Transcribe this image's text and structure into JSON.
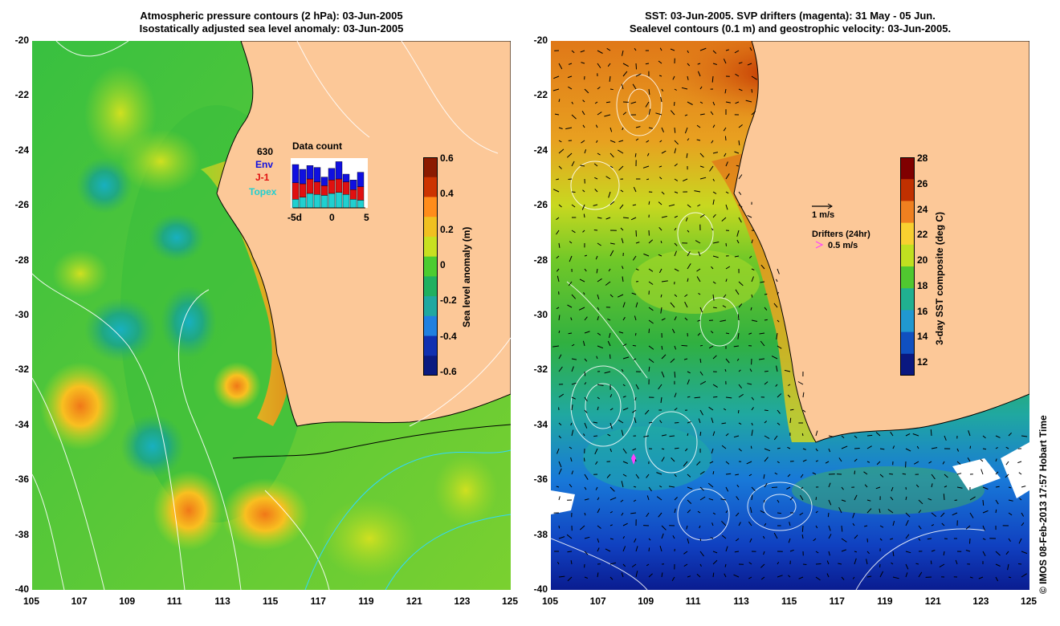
{
  "left_panel": {
    "title_line1": "Atmospheric pressure contours (2 hPa): 03-Jun-2005",
    "title_line2": "Isostatically adjusted sea level anomaly: 03-Jun-2005",
    "colorbar": {
      "title": "Sea level anomaly (m)",
      "ticks": [
        "0.6",
        "0.4",
        "0.2",
        "0",
        "-0.2",
        "-0.4",
        "-0.6"
      ],
      "colors": [
        "#8b1a00",
        "#cc3300",
        "#ff8c1a",
        "#f0c020",
        "#c8e020",
        "#4ccc30",
        "#20b060",
        "#20a8a0",
        "#2080e0",
        "#1030b0",
        "#0a1a80"
      ]
    },
    "data_count": {
      "title": "Data count",
      "total": "630",
      "env_label": "Env",
      "j1_label": "J-1",
      "topex_label": "Topex",
      "x_ticks": [
        "-5d",
        "0",
        "5"
      ],
      "env_color": "#1010e0",
      "j1_color": "#e01010",
      "topex_color": "#20d0d0",
      "bars": [
        {
          "topex": 0.18,
          "j1": 0.34,
          "env": 0.38
        },
        {
          "topex": 0.22,
          "j1": 0.28,
          "env": 0.3
        },
        {
          "topex": 0.3,
          "j1": 0.3,
          "env": 0.28
        },
        {
          "topex": 0.28,
          "j1": 0.26,
          "env": 0.3
        },
        {
          "topex": 0.26,
          "j1": 0.2,
          "env": 0.18
        },
        {
          "topex": 0.3,
          "j1": 0.28,
          "env": 0.24
        },
        {
          "topex": 0.32,
          "j1": 0.28,
          "env": 0.36
        },
        {
          "topex": 0.28,
          "j1": 0.26,
          "env": 0.16
        },
        {
          "topex": 0.18,
          "j1": 0.2,
          "env": 0.2
        },
        {
          "topex": 0.16,
          "j1": 0.28,
          "env": 0.3
        }
      ]
    }
  },
  "right_panel": {
    "title_line1": "SST: 03-Jun-2005. SVP drifters (magenta): 31 May - 05 Jun.",
    "title_line2": "Sealevel contours (0.1 m) and geostrophic velocity: 03-Jun-2005.",
    "colorbar": {
      "title": "3-day SST composite (deg C)",
      "ticks": [
        "28",
        "26",
        "24",
        "22",
        "20",
        "18",
        "16",
        "14",
        "12"
      ],
      "colors": [
        "#800000",
        "#c03000",
        "#f08020",
        "#f8d030",
        "#c0e020",
        "#50c830",
        "#20b090",
        "#2098d0",
        "#1050c0",
        "#0a1880"
      ]
    },
    "velocity_legend": "1 m/s",
    "drifters_title": "Drifters (24hr)",
    "drifters_speed": "0.5 m/s",
    "drifter_color": "#ff40ff"
  },
  "axes": {
    "lat_ticks": [
      "-20",
      "-22",
      "-24",
      "-26",
      "-28",
      "-30",
      "-32",
      "-34",
      "-36",
      "-38",
      "-40"
    ],
    "lon_ticks": [
      "105",
      "107",
      "109",
      "111",
      "113",
      "115",
      "117",
      "119",
      "121",
      "123",
      "125"
    ]
  },
  "colors": {
    "land": "#fcc898"
  },
  "credit": "© IMOS 08-Feb-2013 17:57 Hobart Time"
}
